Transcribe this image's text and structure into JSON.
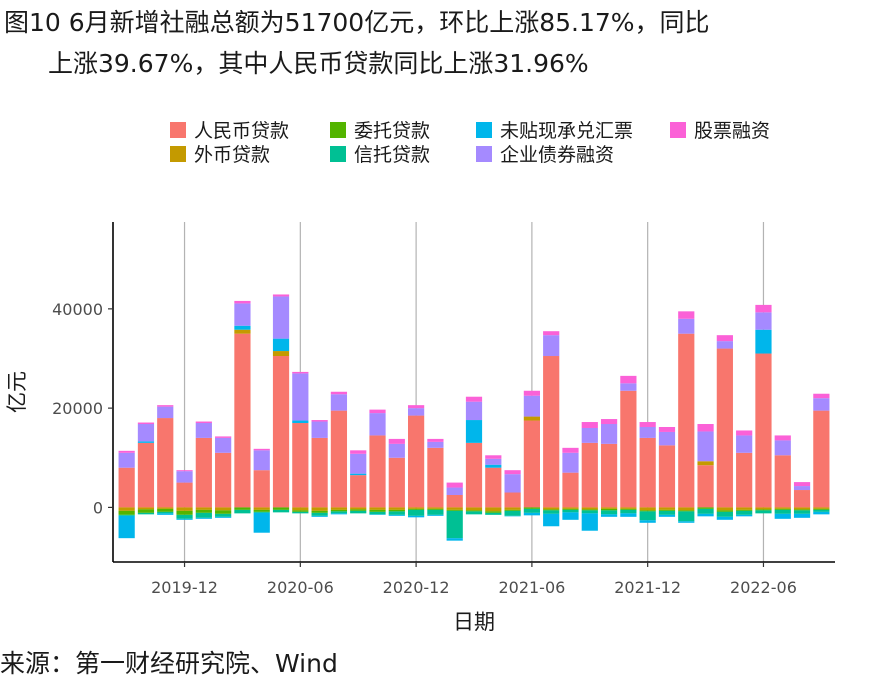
{
  "title": {
    "line1": "图10 6月新增社融总额为51700亿元，环比上涨85.17%，同比",
    "line2": "上涨39.67%，其中人民币贷款同比上涨31.96%"
  },
  "source": "来源：第一财经研究院、Wind",
  "chart_data": {
    "type": "bar",
    "stacked": true,
    "xlabel": "日期",
    "ylabel": "亿元",
    "ylim": [
      -11000,
      57500
    ],
    "yticks": [
      0,
      20000,
      40000
    ],
    "ytick_labels": [
      "0",
      "20000",
      "40000"
    ],
    "xtick_labels": [
      "2019-12",
      "2020-06",
      "2020-12",
      "2021-06",
      "2021-12",
      "2022-06"
    ],
    "xtick_indices": [
      3,
      9,
      15,
      21,
      27,
      33
    ],
    "grid": "vertical at x ticks",
    "legend_position": "top",
    "categories": [
      "2019-09",
      "2019-10",
      "2019-11",
      "2019-12",
      "2020-01",
      "2020-02",
      "2020-03",
      "2020-04",
      "2020-05",
      "2020-06",
      "2020-07",
      "2020-08",
      "2020-09",
      "2020-10",
      "2020-11",
      "2020-12",
      "2021-01",
      "2021-02",
      "2021-03",
      "2021-04",
      "2021-05",
      "2021-06",
      "2021-07",
      "2021-08",
      "2021-09",
      "2021-10",
      "2021-11",
      "2021-12",
      "2022-01",
      "2022-02",
      "2022-03",
      "2022-04",
      "2022-05",
      "2022-06",
      "2022-07",
      "2022-08",
      "2022-09"
    ],
    "series": [
      {
        "name": "人民币贷款",
        "color": "#F8766D",
        "values": [
          8000,
          13000,
          18000,
          5000,
          14000,
          11000,
          35000,
          7500,
          30500,
          17000,
          14000,
          19500,
          6500,
          14500,
          10000,
          18500,
          12000,
          2500,
          13000,
          8000,
          3000,
          17500,
          30500,
          7000,
          13000,
          12800,
          23500,
          14000,
          12500,
          35000,
          8500,
          32000,
          11000,
          31000,
          10500,
          3500,
          19500
        ]
      },
      {
        "name": "外币贷款",
        "color": "#C49A00",
        "values": [
          -700,
          -400,
          -300,
          -700,
          -500,
          -600,
          800,
          -500,
          1000,
          -600,
          -700,
          -500,
          -400,
          -500,
          -500,
          -300,
          -300,
          -500,
          -600,
          -800,
          -500,
          800,
          -400,
          -300,
          -400,
          -300,
          -300,
          -600,
          -500,
          -600,
          800,
          -600,
          -500,
          -400,
          -300,
          -400,
          -300
        ]
      },
      {
        "name": "委托贷款",
        "color": "#53B400",
        "values": [
          -800,
          -700,
          -600,
          -800,
          -600,
          -700,
          -500,
          -400,
          -500,
          -300,
          -400,
          -300,
          -300,
          -400,
          -300,
          -200,
          -200,
          -200,
          -200,
          -300,
          -200,
          -300,
          -200,
          -200,
          -200,
          -300,
          -200,
          -200,
          -200,
          -200,
          -300,
          -300,
          -200,
          -200,
          -200,
          -200,
          -200
        ]
      },
      {
        "name": "信托贷款",
        "color": "#00C094",
        "values": [
          -200,
          -300,
          -300,
          -800,
          -1000,
          -600,
          -700,
          -200,
          -500,
          -300,
          -600,
          -400,
          -500,
          -500,
          -700,
          -1200,
          -1000,
          -5500,
          -600,
          -400,
          -1000,
          -800,
          -700,
          -500,
          -600,
          -800,
          -700,
          -1800,
          -800,
          -2000,
          -1000,
          -1000,
          -800,
          -600,
          -800,
          -700,
          -400
        ]
      },
      {
        "name": "未贴现承兑汇票",
        "color": "#00B6EB",
        "values": [
          -4500,
          300,
          -300,
          -200,
          -200,
          -200,
          800,
          -4000,
          2500,
          500,
          -200,
          -200,
          300,
          -100,
          -200,
          -300,
          -200,
          -500,
          4600,
          600,
          -100,
          -500,
          -2500,
          -1500,
          -3500,
          -500,
          -700,
          -500,
          -400,
          -300,
          -500,
          -600,
          -300,
          4800,
          -1000,
          -800,
          -500
        ]
      },
      {
        "name": "企业债券融资",
        "color": "#A58AFF",
        "values": [
          3000,
          3500,
          2300,
          2300,
          3000,
          3000,
          4500,
          4000,
          8500,
          9500,
          3300,
          3300,
          4000,
          4500,
          2800,
          1500,
          1200,
          1500,
          3700,
          1200,
          3700,
          4200,
          4200,
          4000,
          3000,
          4000,
          1500,
          2200,
          2700,
          3000,
          6000,
          1500,
          3500,
          3500,
          3000,
          800,
          2500
        ]
      },
      {
        "name": "股票融资",
        "color": "#FB61D7",
        "values": [
          400,
          300,
          300,
          200,
          300,
          300,
          500,
          300,
          400,
          300,
          300,
          500,
          700,
          700,
          1000,
          600,
          600,
          1000,
          1000,
          700,
          800,
          1000,
          800,
          1000,
          1200,
          1000,
          1500,
          1000,
          1000,
          1500,
          1500,
          1200,
          1000,
          1500,
          1000,
          800,
          900
        ]
      }
    ]
  }
}
